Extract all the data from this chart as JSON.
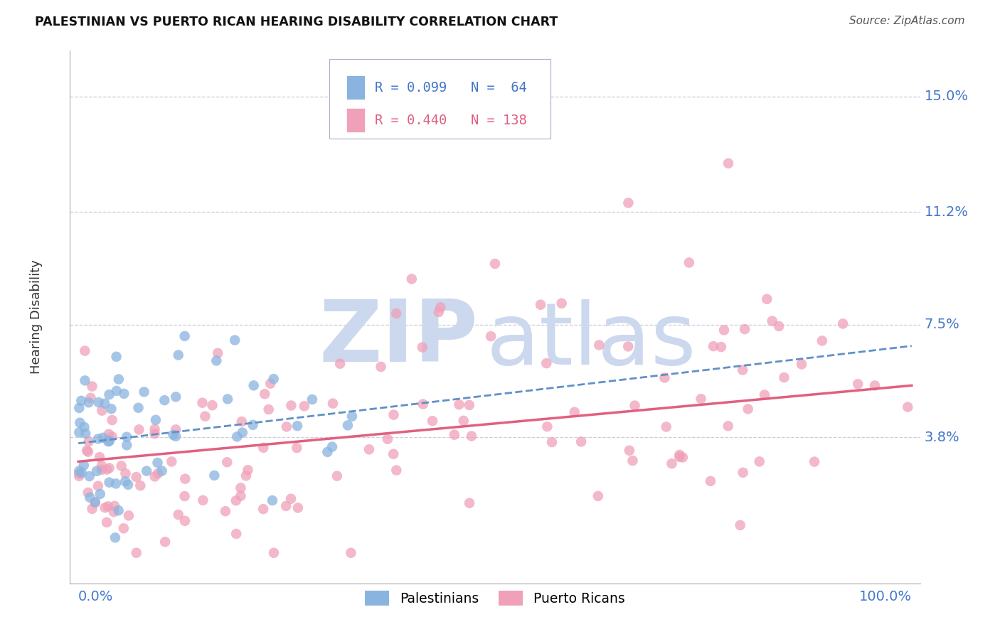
{
  "title": "PALESTINIAN VS PUERTO RICAN HEARING DISABILITY CORRELATION CHART",
  "source": "Source: ZipAtlas.com",
  "ylabel": "Hearing Disability",
  "ytick_vals": [
    0.038,
    0.075,
    0.112,
    0.15
  ],
  "ytick_labels": [
    "3.8%",
    "7.5%",
    "11.2%",
    "15.0%"
  ],
  "xlim": [
    -0.01,
    1.01
  ],
  "ylim": [
    -0.01,
    0.165
  ],
  "legend_line1": "R = 0.099   N =  64",
  "legend_line2": "R = 0.440   N = 138",
  "color_palestinian": "#8ab4e0",
  "color_puerto_rican": "#f0a0b8",
  "color_trend_palestinian": "#6090c8",
  "color_trend_puerto_rican": "#e06080",
  "color_axis_labels": "#4477cc",
  "color_grid": "#ccccdd",
  "watermark_zip": "ZIP",
  "watermark_atlas": "atlas",
  "watermark_color": "#ccd8ee",
  "background_color": "#ffffff",
  "marker_size": 110
}
